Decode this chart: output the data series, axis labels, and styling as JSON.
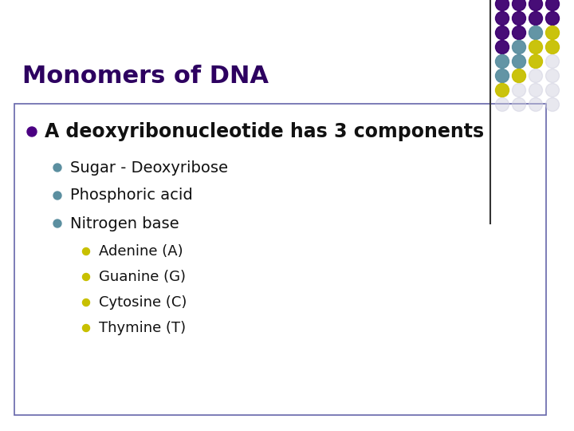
{
  "title": "Monomers of DNA",
  "title_color": "#2d0060",
  "title_fontsize": 22,
  "bg_color": "#ffffff",
  "content_box_color": "#ffffff",
  "content_box_edge": "#8888aa",
  "main_bullet_color": "#4b0082",
  "main_bullet_text": "A deoxyribonucleotide has 3 components",
  "main_bullet_fontsize": 17,
  "sub_bullet_color": "#5b8fa0",
  "sub_bullet_fontsize": 14,
  "sub_bullets": [
    "Sugar - Deoxyribose",
    "Phosphoric acid",
    "Nitrogen base"
  ],
  "sub_sub_bullet_color": "#c8c000",
  "sub_sub_bullet_fontsize": 13,
  "sub_sub_bullets": [
    "Adenine (A)",
    "Guanine (G)",
    "Cytosine (C)",
    "Thymine (T)"
  ],
  "dot_grid": [
    [
      "#3d0070",
      "#3d0070",
      "#3d0070",
      "#3d0070"
    ],
    [
      "#3d0070",
      "#3d0070",
      "#3d0070",
      "#3d0070"
    ],
    [
      "#3d0070",
      "#3d0070",
      "#5b8fa0",
      "#c8c000"
    ],
    [
      "#3d0070",
      "#5b8fa0",
      "#c8c000",
      "#c8c000"
    ],
    [
      "#5b8fa0",
      "#5b8fa0",
      "#c8c000",
      "#ccccdd"
    ],
    [
      "#5b8fa0",
      "#c8c000",
      "#ccccdd",
      "#ccccdd"
    ],
    [
      "#c8c000",
      "#ccccdd",
      "#ccccdd",
      "#ccccdd"
    ],
    [
      "#ccccdd",
      "#ccccdd",
      "#ccccdd",
      "#ccccdd"
    ]
  ],
  "separator_line_color": "#333333",
  "box_border_color": "#6666aa"
}
